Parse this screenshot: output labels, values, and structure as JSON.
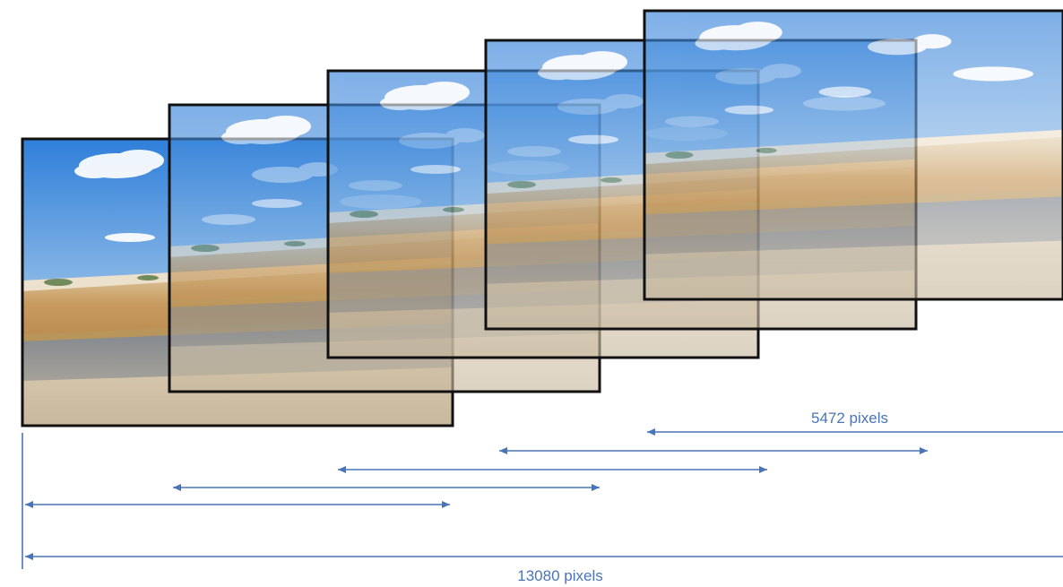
{
  "colors": {
    "frame_border": "#111111",
    "measure": "#4a74b8",
    "sky_top": "#3f86d8",
    "sky_bottom": "#d9e8f4",
    "field": "#cfae75",
    "road": "#8a8f95"
  },
  "frames": [
    {
      "index": 1
    },
    {
      "index": 2
    },
    {
      "index": 3
    },
    {
      "index": 4
    },
    {
      "index": 5
    }
  ],
  "measurements": {
    "frame_width_label": "5472 pixels",
    "total_width_label": "13080 pixels"
  }
}
